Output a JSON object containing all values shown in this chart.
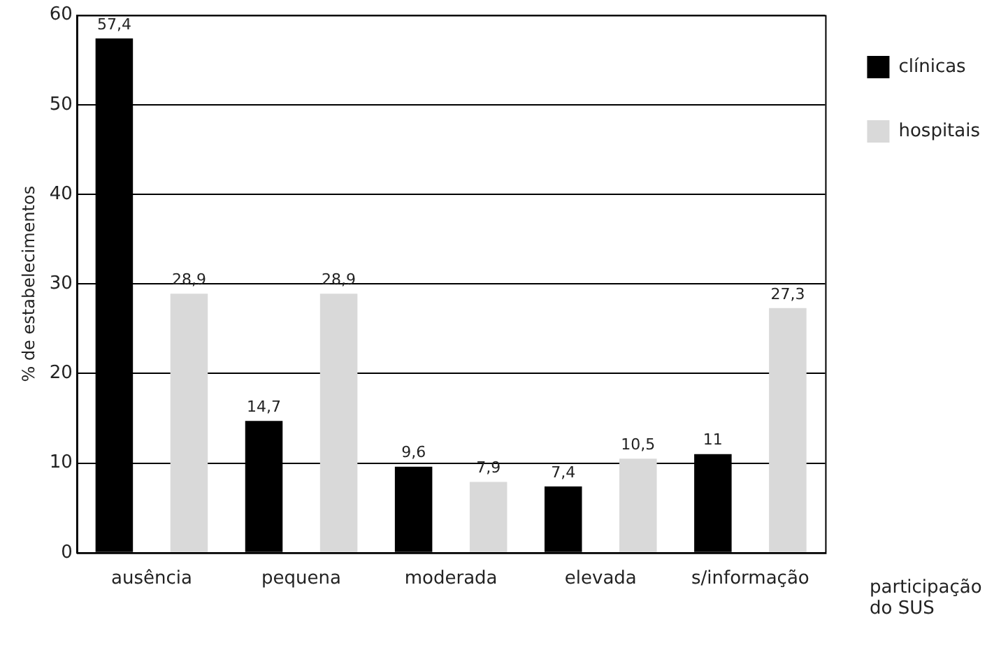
{
  "chart_data": {
    "type": "bar",
    "xlabel": "participação do SUS",
    "ylabel": "% de estabelecimentos",
    "categories": [
      "ausência",
      "pequena",
      "moderada",
      "elevada",
      "s/informação"
    ],
    "series": [
      {
        "name": "clínicas",
        "color": "#000000",
        "values": [
          57.4,
          14.7,
          9.6,
          7.4,
          11
        ],
        "value_labels": [
          "57,4",
          "14,7",
          "9,6",
          "7,4",
          "11"
        ]
      },
      {
        "name": "hospitais",
        "color": "#d9d9d9",
        "values": [
          28.9,
          28.9,
          7.9,
          10.5,
          27.3
        ],
        "value_labels": [
          "28,9",
          "28,9",
          "7,9",
          "10,5",
          "27,3"
        ]
      }
    ],
    "ylim": [
      0,
      60
    ],
    "yticks": [
      0,
      10,
      20,
      30,
      40,
      50,
      60
    ],
    "grid": "y",
    "legend": "top right"
  }
}
